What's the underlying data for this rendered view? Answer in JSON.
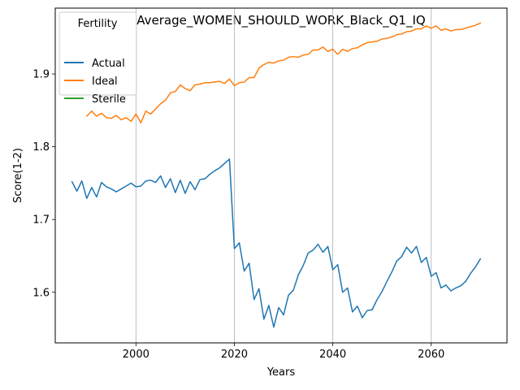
{
  "chart_data": {
    "type": "line",
    "title": "Average_WOMEN_SHOULD_WORK_Black_Q1_IQ",
    "xlabel": "Years",
    "ylabel": "Score(1-2)",
    "xlim": [
      1983.6,
      2075.4
    ],
    "ylim": [
      1.5305,
      1.9905
    ],
    "xticks": [
      2000,
      2020,
      2040,
      2060
    ],
    "xtick_labels": [
      "2000",
      "2020",
      "2040",
      "2060"
    ],
    "yticks": [
      1.6,
      1.7,
      1.8,
      1.9
    ],
    "ytick_labels": [
      "1.6",
      "1.7",
      "1.8",
      "1.9"
    ],
    "grid": "x-only",
    "legend": {
      "title": "Fertility",
      "placement": "top-left",
      "entries": [
        "Actual",
        "Ideal",
        "Sterile"
      ]
    },
    "series": [
      {
        "name": "Actual",
        "color": "#1f77b4",
        "x": [
          1987,
          1988,
          1989,
          1990,
          1991,
          1992,
          1993,
          1994,
          1995,
          1996,
          1997,
          1998,
          1999,
          2000,
          2001,
          2002,
          2003,
          2004,
          2005,
          2006,
          2007,
          2008,
          2009,
          2010,
          2011,
          2012,
          2013,
          2014,
          2015,
          2016,
          2017,
          2018,
          2019,
          2020,
          2021,
          2022,
          2023,
          2024,
          2025,
          2026,
          2027,
          2028,
          2029,
          2030,
          2031,
          2032,
          2033,
          2034,
          2035,
          2036,
          2037,
          2038,
          2039,
          2040,
          2041,
          2042,
          2043,
          2044,
          2045,
          2046,
          2047,
          2048,
          2049,
          2050,
          2051,
          2052,
          2053,
          2054,
          2055,
          2056,
          2057,
          2058,
          2059,
          2060,
          2061,
          2062,
          2063,
          2064,
          2065,
          2066,
          2067,
          2068,
          2069,
          2070
        ],
        "values": [
          1.752,
          1.739,
          1.753,
          1.729,
          1.744,
          1.731,
          1.751,
          1.745,
          1.742,
          1.738,
          1.742,
          1.746,
          1.75,
          1.745,
          1.746,
          1.753,
          1.754,
          1.751,
          1.76,
          1.744,
          1.756,
          1.737,
          1.754,
          1.736,
          1.752,
          1.741,
          1.755,
          1.756,
          1.762,
          1.767,
          1.771,
          1.777,
          1.783,
          1.66,
          1.668,
          1.629,
          1.64,
          1.59,
          1.605,
          1.563,
          1.582,
          1.552,
          1.579,
          1.569,
          1.596,
          1.603,
          1.624,
          1.637,
          1.654,
          1.658,
          1.666,
          1.655,
          1.663,
          1.631,
          1.638,
          1.6,
          1.606,
          1.573,
          1.581,
          1.565,
          1.575,
          1.576,
          1.59,
          1.601,
          1.615,
          1.628,
          1.643,
          1.649,
          1.662,
          1.654,
          1.663,
          1.641,
          1.648,
          1.622,
          1.627,
          1.606,
          1.61,
          1.602,
          1.606,
          1.609,
          1.615,
          1.626,
          1.635,
          1.646
        ]
      },
      {
        "name": "Ideal",
        "color": "#ff7f0e",
        "x": [
          1990,
          1991,
          1992,
          1993,
          1994,
          1995,
          1996,
          1997,
          1998,
          1999,
          2000,
          2001,
          2002,
          2003,
          2004,
          2005,
          2006,
          2007,
          2008,
          2009,
          2010,
          2011,
          2012,
          2013,
          2014,
          2015,
          2016,
          2017,
          2018,
          2019,
          2020,
          2021,
          2022,
          2023,
          2024,
          2025,
          2026,
          2027,
          2028,
          2029,
          2030,
          2031,
          2032,
          2033,
          2034,
          2035,
          2036,
          2037,
          2038,
          2039,
          2040,
          2041,
          2042,
          2043,
          2044,
          2045,
          2046,
          2047,
          2048,
          2049,
          2050,
          2051,
          2052,
          2053,
          2054,
          2055,
          2056,
          2057,
          2058,
          2059,
          2060,
          2061,
          2062,
          2063,
          2064,
          2065,
          2066,
          2067,
          2068,
          2069,
          2070
        ],
        "values": [
          1.842,
          1.849,
          1.842,
          1.846,
          1.84,
          1.839,
          1.843,
          1.837,
          1.84,
          1.835,
          1.845,
          1.833,
          1.849,
          1.845,
          1.852,
          1.859,
          1.864,
          1.874,
          1.876,
          1.885,
          1.88,
          1.877,
          1.885,
          1.886,
          1.888,
          1.888,
          1.889,
          1.89,
          1.887,
          1.893,
          1.884,
          1.888,
          1.889,
          1.895,
          1.895,
          1.908,
          1.913,
          1.916,
          1.915,
          1.918,
          1.919,
          1.923,
          1.924,
          1.923,
          1.926,
          1.927,
          1.933,
          1.933,
          1.937,
          1.931,
          1.934,
          1.927,
          1.934,
          1.931,
          1.935,
          1.936,
          1.94,
          1.943,
          1.944,
          1.945,
          1.948,
          1.949,
          1.951,
          1.954,
          1.955,
          1.958,
          1.959,
          1.962,
          1.962,
          1.966,
          1.963,
          1.966,
          1.96,
          1.962,
          1.959,
          1.961,
          1.961,
          1.963,
          1.965,
          1.967,
          1.97
        ]
      },
      {
        "name": "Sterile",
        "color": "#2ca02c",
        "x": [],
        "values": []
      }
    ]
  }
}
